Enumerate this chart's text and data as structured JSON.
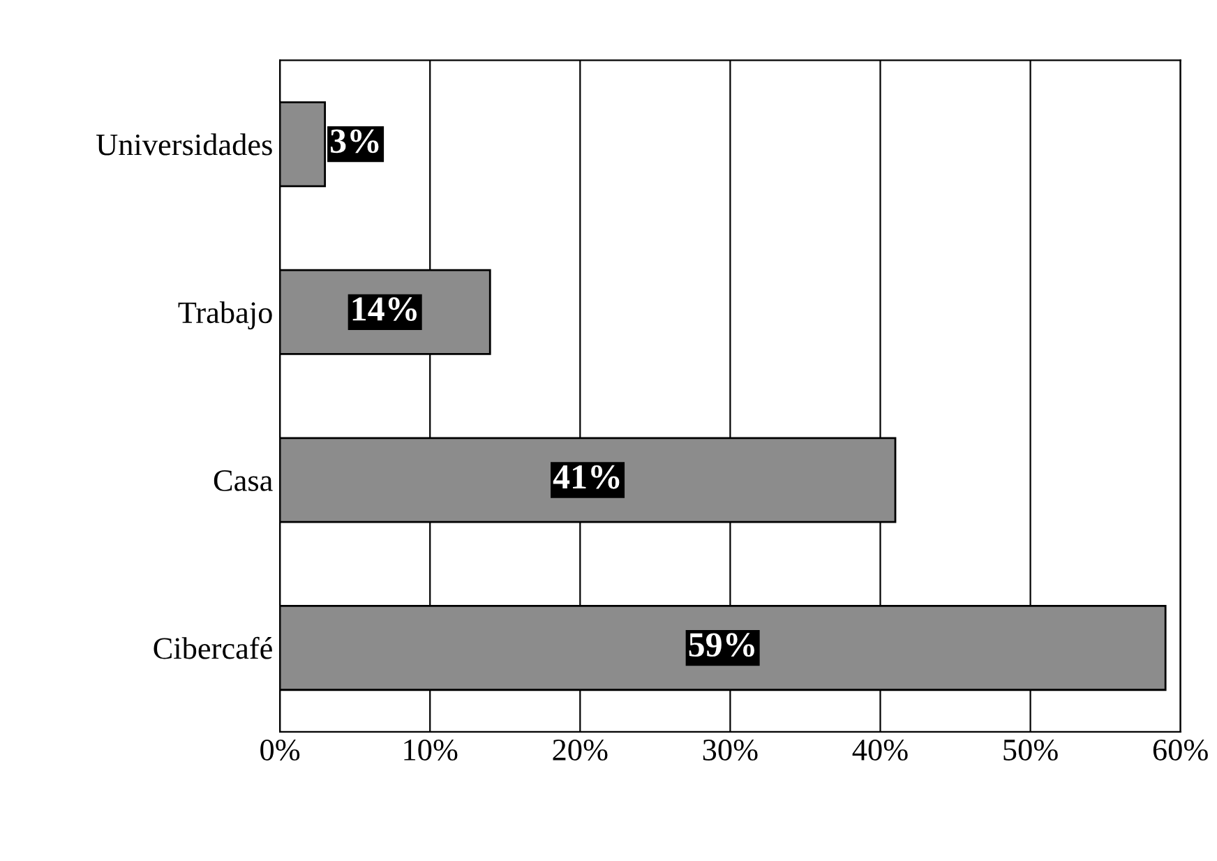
{
  "chart_data": {
    "type": "bar",
    "orientation": "horizontal",
    "categories": [
      "Universidades",
      "Trabajo",
      "Casa",
      "Cibercafé"
    ],
    "values": [
      3,
      14,
      41,
      59
    ],
    "color": "#8c8c8c",
    "value_labels": [
      "3%",
      "14%",
      "41%",
      "59%"
    ],
    "xlim": [
      0,
      60
    ],
    "xticks": [
      {
        "value": 0,
        "label": "0%"
      },
      {
        "value": 10,
        "label": "10%"
      },
      {
        "value": 20,
        "label": "20%"
      },
      {
        "value": 30,
        "label": "30%"
      },
      {
        "value": 40,
        "label": "40%"
      },
      {
        "value": 50,
        "label": "50%"
      },
      {
        "value": 60,
        "label": "60%"
      }
    ],
    "grid": "x",
    "legend": false
  }
}
